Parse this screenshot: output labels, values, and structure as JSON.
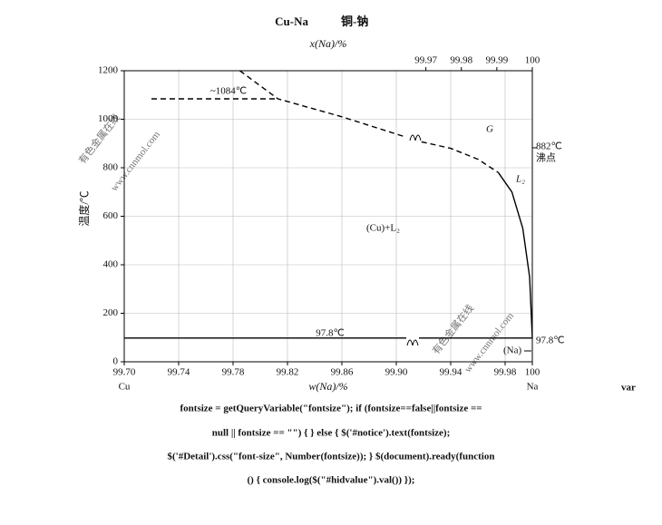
{
  "chart_data": {
    "type": "line",
    "title": "Cu-Na",
    "subtitle": "铜-钠",
    "x2_label": "x(Na)/%",
    "x_label": "w(Na)/%",
    "y_label": "温度/℃",
    "xlim": [
      99.7,
      100
    ],
    "xticks": [
      {
        "value": 99.7,
        "label": "99.70"
      },
      99.74,
      99.78,
      99.82,
      99.86,
      {
        "value": 99.9,
        "label": "99.90"
      },
      99.94,
      99.98,
      100
    ],
    "x2lim": [
      99.885,
      100
    ],
    "x2ticks": [
      99.97,
      99.98,
      99.99,
      100
    ],
    "ylim": [
      0,
      1200
    ],
    "yticks": [
      0,
      200,
      400,
      600,
      800,
      1000,
      1200
    ],
    "grid": true,
    "series": [
      {
        "x": [
          99.785,
          99.813,
          99.86,
          99.905
        ],
        "values": [
          1200,
          1084,
          1010,
          930
        ],
        "color": "#000000",
        "dashed": true
      },
      {
        "x": [
          99.912,
          99.94,
          99.96,
          99.975
        ],
        "values": [
          915,
          880,
          835,
          780
        ],
        "color": "#000000",
        "dashed": true
      },
      {
        "x": [
          99.975,
          99.985,
          99.993,
          99.998,
          100
        ],
        "values": [
          780,
          700,
          550,
          350,
          97.8
        ],
        "color": "#000000",
        "dashed": false
      },
      {
        "x": [
          99.72,
          99.813
        ],
        "values": [
          1084,
          1084
        ],
        "color": "#000000",
        "dashed": true
      },
      {
        "x": [
          99.7,
          100
        ],
        "values": [
          97.8,
          97.8
        ],
        "color": "#000000",
        "dashed": false
      }
    ],
    "annotations": [
      "~1084℃",
      "97.8℃",
      "G",
      "L₂",
      "(Cu)+L₂",
      "882℃",
      "沸点",
      "97.8℃",
      "(Na)",
      "Cu",
      "Na"
    ],
    "watermarks": [
      "有色金属在线",
      "www.cnnmol.com",
      "有色金属在线",
      "www.cnnmol.com"
    ]
  },
  "page_text": [
    "var",
    "fontsize = getQueryVariable(\"fontsize\"); if (fontsize==false||fontsize ==",
    "null || fontsize == \"\") { } else { $('#notice').text(fontsize);",
    "$('#Detail').css(\"font-size\", Number(fontsize)); } $(document).ready(function",
    "() { console.log($(\"#hidvalue\").val()) });"
  ]
}
